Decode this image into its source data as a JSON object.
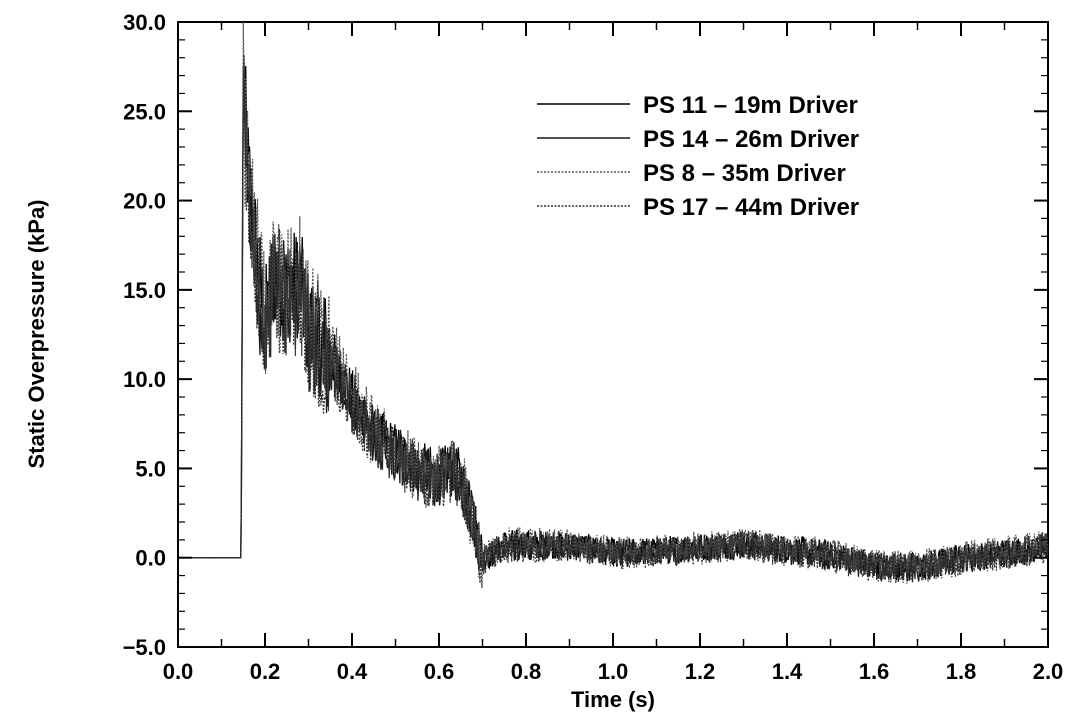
{
  "chart_data": {
    "type": "line",
    "title": "",
    "xlabel": "Time (s)",
    "ylabel": "Static Overpressure (kPa)",
    "xlim": [
      0.0,
      2.0
    ],
    "ylim": [
      -5.0,
      30.0
    ],
    "xticks": [
      "0.0",
      "0.2",
      "0.4",
      "0.6",
      "0.8",
      "1.0",
      "1.2",
      "1.4",
      "1.6",
      "1.8",
      "2.0"
    ],
    "yticks": [
      "-5.0",
      "0.0",
      "5.0",
      "10.0",
      "15.0",
      "20.0",
      "25.0",
      "30.0"
    ],
    "grid": false,
    "legend_position": "top-right",
    "series": [
      {
        "name": "PS 11 – 19m Driver",
        "color": "#000000",
        "style": "solid",
        "x": [
          0.0,
          0.145,
          0.15,
          0.16,
          0.17,
          0.18,
          0.2,
          0.22,
          0.25,
          0.28,
          0.3,
          0.35,
          0.4,
          0.45,
          0.5,
          0.55,
          0.6,
          0.63,
          0.65,
          0.68,
          0.7,
          0.72,
          0.75,
          0.8,
          0.9,
          1.0,
          1.1,
          1.2,
          1.3,
          1.4,
          1.5,
          1.6,
          1.7,
          1.8,
          1.9,
          2.0
        ],
        "y": [
          0.0,
          0.0,
          27.5,
          22.0,
          19.5,
          17.0,
          13.0,
          16.0,
          15.0,
          15.5,
          13.0,
          11.5,
          9.0,
          7.0,
          6.0,
          5.0,
          4.5,
          5.0,
          4.5,
          2.0,
          0.0,
          0.2,
          0.8,
          0.8,
          0.7,
          0.3,
          0.4,
          0.6,
          0.8,
          0.5,
          0.2,
          -0.4,
          -0.5,
          0.0,
          0.3,
          0.7
        ]
      },
      {
        "name": "PS 14 – 26m Driver",
        "color": "#1a1a1a",
        "style": "solid",
        "x": [
          0.0,
          0.145,
          0.15,
          0.16,
          0.17,
          0.18,
          0.2,
          0.22,
          0.25,
          0.28,
          0.3,
          0.35,
          0.4,
          0.45,
          0.5,
          0.55,
          0.6,
          0.63,
          0.65,
          0.68,
          0.7,
          0.72,
          0.75,
          0.8,
          0.9,
          1.0,
          1.1,
          1.2,
          1.3,
          1.4,
          1.5,
          1.6,
          1.7,
          1.8,
          1.9,
          2.0
        ],
        "y": [
          0.0,
          0.0,
          26.0,
          21.0,
          18.5,
          16.0,
          12.5,
          15.5,
          14.5,
          15.0,
          12.5,
          11.0,
          8.5,
          6.8,
          5.8,
          4.8,
          4.3,
          4.8,
          4.3,
          1.8,
          -0.2,
          0.1,
          0.6,
          0.6,
          0.6,
          0.2,
          0.3,
          0.5,
          0.7,
          0.4,
          0.1,
          -0.5,
          -0.6,
          -0.1,
          0.2,
          0.6
        ]
      },
      {
        "name": "PS  8 – 35m Driver",
        "color": "#555555",
        "style": "dotted",
        "x": [
          0.0,
          0.145,
          0.15,
          0.16,
          0.17,
          0.18,
          0.2,
          0.22,
          0.25,
          0.28,
          0.3,
          0.35,
          0.4,
          0.45,
          0.5,
          0.55,
          0.6,
          0.63,
          0.65,
          0.68,
          0.7,
          0.72,
          0.75,
          0.8,
          0.9,
          1.0,
          1.1,
          1.2,
          1.3,
          1.4,
          1.5,
          1.6,
          1.7,
          1.8,
          1.9,
          2.0
        ],
        "y": [
          0.0,
          0.0,
          30.0,
          23.0,
          20.0,
          17.5,
          13.5,
          16.5,
          15.5,
          16.0,
          13.5,
          12.0,
          9.5,
          7.3,
          6.2,
          5.2,
          4.7,
          5.2,
          4.7,
          2.2,
          0.1,
          0.3,
          0.9,
          0.9,
          0.8,
          0.4,
          0.5,
          0.7,
          0.9,
          0.6,
          0.3,
          -0.3,
          -0.4,
          0.1,
          0.4,
          0.8
        ]
      },
      {
        "name": "PS 17 – 44m Driver",
        "color": "#333333",
        "style": "dotted",
        "x": [
          0.0,
          0.145,
          0.15,
          0.16,
          0.17,
          0.18,
          0.2,
          0.22,
          0.25,
          0.28,
          0.3,
          0.35,
          0.4,
          0.45,
          0.5,
          0.55,
          0.6,
          0.63,
          0.65,
          0.68,
          0.7,
          0.72,
          0.75,
          0.8,
          0.9,
          1.0,
          1.1,
          1.2,
          1.3,
          1.4,
          1.5,
          1.6,
          1.7,
          1.8,
          1.9,
          2.0
        ],
        "y": [
          0.0,
          0.0,
          25.0,
          20.0,
          18.0,
          15.5,
          12.0,
          15.0,
          14.0,
          14.5,
          12.0,
          10.8,
          8.3,
          6.6,
          5.6,
          4.6,
          4.1,
          4.6,
          4.1,
          1.6,
          -0.4,
          0.0,
          0.5,
          0.5,
          0.5,
          0.1,
          0.2,
          0.4,
          0.6,
          0.3,
          0.0,
          -0.6,
          -0.7,
          -0.2,
          0.1,
          0.5
        ]
      }
    ]
  }
}
